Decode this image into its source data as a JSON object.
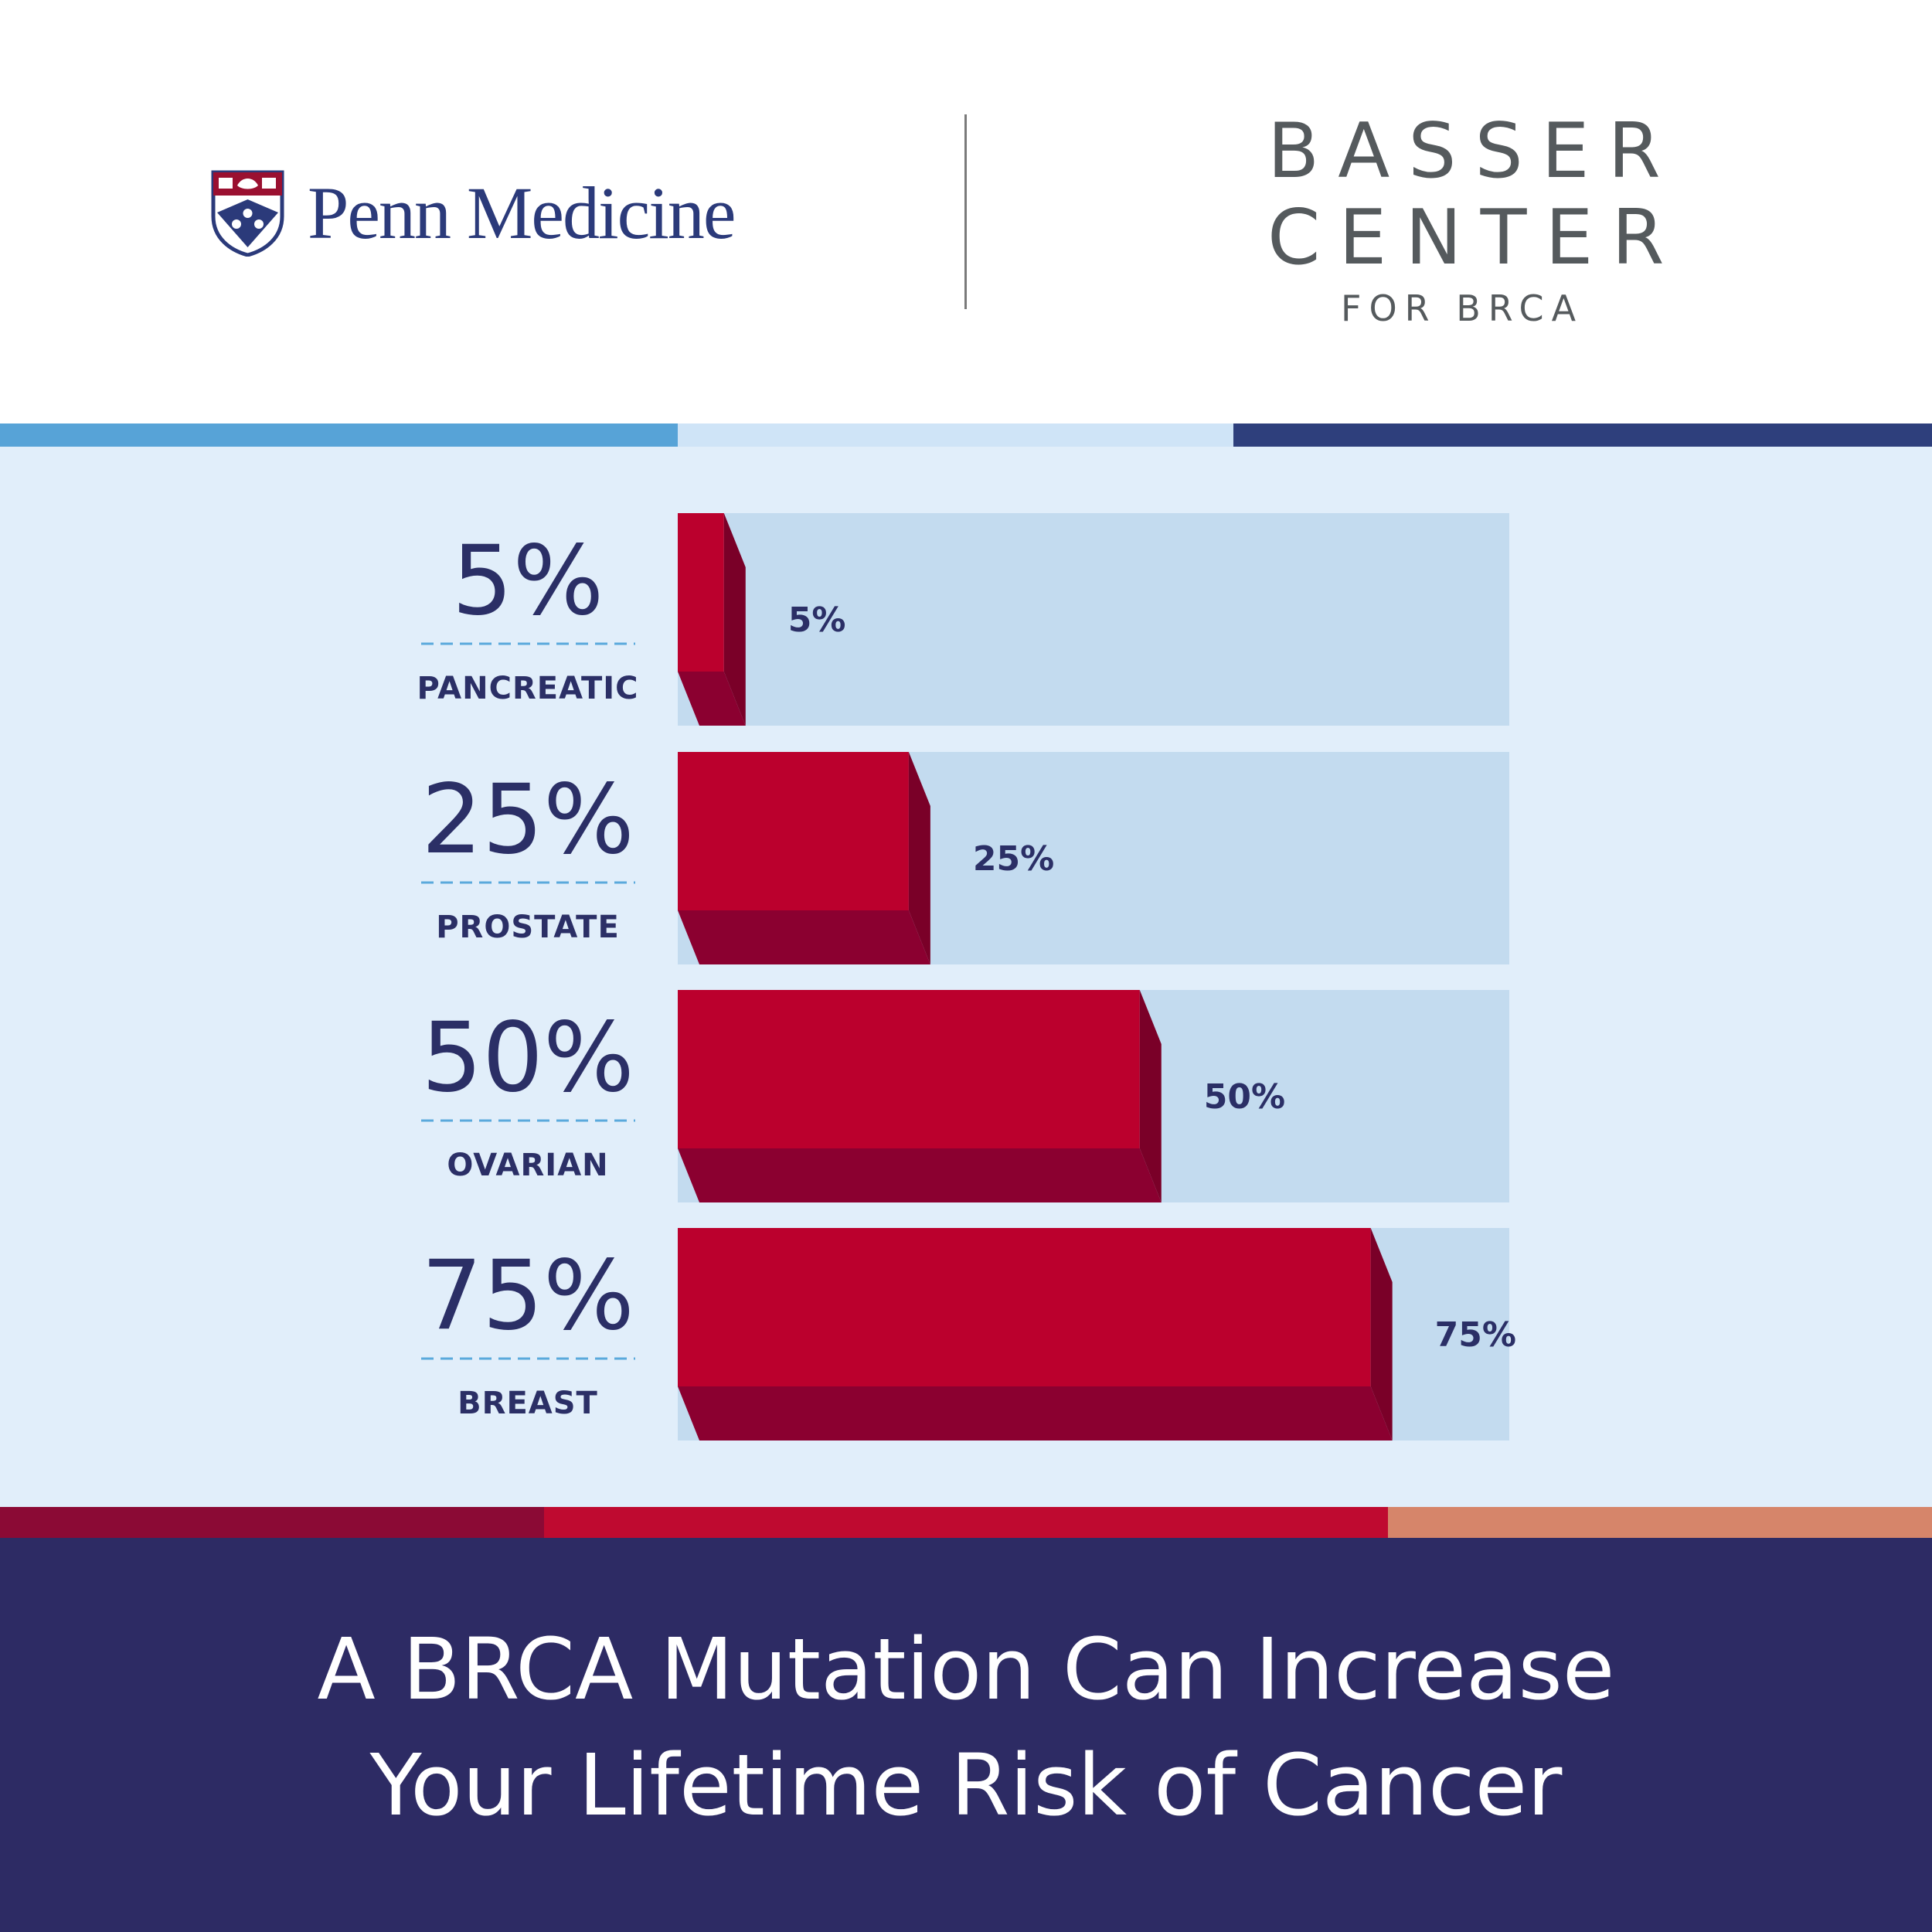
{
  "logos": {
    "penn_medicine": "Penn Medicine",
    "basser_line1": "BASSER",
    "basser_line2": "CENTER",
    "basser_line3": "FOR BRCA"
  },
  "colors": {
    "bar": "#bb002d",
    "bar_shadow": "#8b0030",
    "track": "#c3dbef",
    "panel": "#e1eefa",
    "text": "#2b2f66",
    "dashes": "#5aa9dc",
    "footer": "#2d2b64"
  },
  "footer": {
    "line1": "A BRCA Mutation Can Increase",
    "line2": "Your Lifetime Risk of Cancer"
  },
  "chart_data": {
    "type": "bar",
    "orientation": "horizontal",
    "categories": [
      "PANCREATIC",
      "PROSTATE",
      "OVARIAN",
      "BREAST"
    ],
    "values": [
      5,
      25,
      50,
      75
    ],
    "value_labels": [
      "5%",
      "25%",
      "50%",
      "75%"
    ],
    "xlim": [
      0,
      100
    ],
    "unit": "%",
    "grid": false,
    "legend": "none"
  }
}
